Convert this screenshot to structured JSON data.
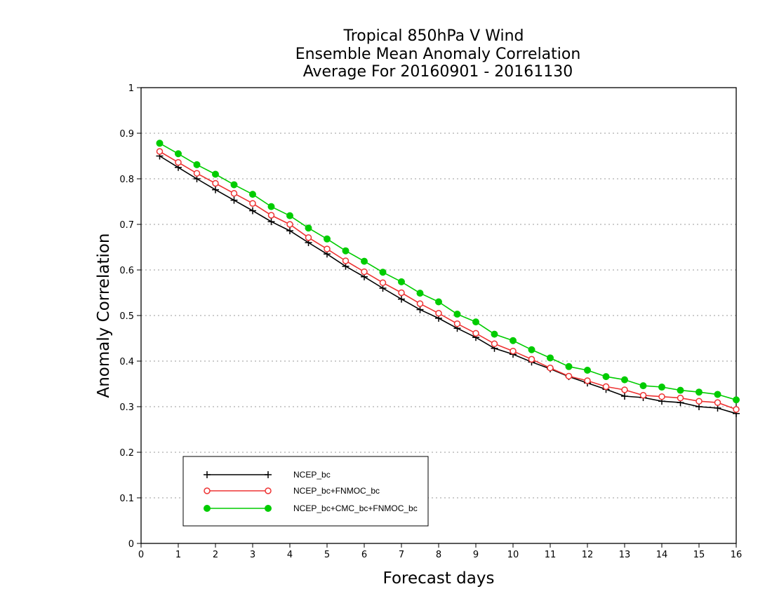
{
  "chart_data": {
    "type": "line",
    "title": [
      "Tropical 850hPa V Wind",
      "Ensemble Mean Anomaly Correlation",
      "Average For 20160901 - 20161130"
    ],
    "xlabel": "Forecast days",
    "ylabel": "Anomaly Correlation",
    "xlim": [
      0,
      16
    ],
    "ylim": [
      0,
      1
    ],
    "xticks": [
      0,
      1,
      2,
      3,
      4,
      5,
      6,
      7,
      8,
      9,
      10,
      11,
      12,
      13,
      14,
      15,
      16
    ],
    "yticks": [
      0,
      0.1,
      0.2,
      0.3,
      0.4,
      0.5,
      0.6,
      0.7,
      0.8,
      0.9,
      1
    ],
    "ytick_labels": [
      "0",
      "0.1",
      "0.2",
      "0.3",
      "0.4",
      "0.5",
      "0.6",
      "0.7",
      "0.8",
      "0.9",
      "1"
    ],
    "grid": "horizontal-dotted",
    "legend_position": "bottom-left",
    "x": [
      0.5,
      1,
      1.5,
      2,
      2.5,
      3,
      3.5,
      4,
      4.5,
      5,
      5.5,
      6,
      6.5,
      7,
      7.5,
      8,
      8.5,
      9,
      9.5,
      10,
      10.5,
      11,
      11.5,
      12,
      12.5,
      13,
      13.5,
      14,
      14.5,
      15,
      15.5,
      16
    ],
    "series": [
      {
        "name": "NCEP_bc",
        "color": "#000000",
        "marker": "plus",
        "values": [
          0.85,
          0.825,
          0.8,
          0.776,
          0.753,
          0.73,
          0.706,
          0.686,
          0.66,
          0.635,
          0.608,
          0.585,
          0.56,
          0.536,
          0.513,
          0.494,
          0.472,
          0.452,
          0.428,
          0.415,
          0.398,
          0.383,
          0.366,
          0.352,
          0.338,
          0.323,
          0.32,
          0.312,
          0.309,
          0.3,
          0.297,
          0.285
        ]
      },
      {
        "name": "NCEP_bc+FNMOC_bc",
        "color": "#ee3333",
        "marker": "open-circle",
        "values": [
          0.86,
          0.836,
          0.812,
          0.79,
          0.768,
          0.746,
          0.72,
          0.7,
          0.671,
          0.646,
          0.62,
          0.596,
          0.572,
          0.55,
          0.526,
          0.505,
          0.482,
          0.461,
          0.438,
          0.422,
          0.404,
          0.385,
          0.367,
          0.357,
          0.344,
          0.337,
          0.325,
          0.322,
          0.319,
          0.312,
          0.309,
          0.294
        ]
      },
      {
        "name": "NCEP_bc+CMC_bc+FNMOC_bc",
        "color": "#00cc00",
        "marker": "filled-circle",
        "values": [
          0.878,
          0.855,
          0.831,
          0.81,
          0.787,
          0.766,
          0.739,
          0.719,
          0.692,
          0.668,
          0.642,
          0.619,
          0.595,
          0.574,
          0.549,
          0.53,
          0.503,
          0.486,
          0.459,
          0.445,
          0.425,
          0.407,
          0.388,
          0.38,
          0.366,
          0.359,
          0.346,
          0.343,
          0.336,
          0.332,
          0.327,
          0.315
        ]
      }
    ]
  }
}
